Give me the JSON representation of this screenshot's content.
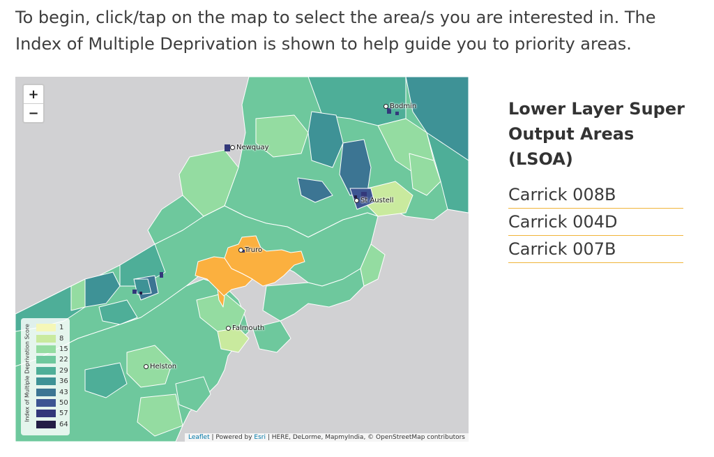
{
  "intro": {
    "line1": "To begin, click/tap on the map to select the area/s you are interested in. The",
    "line2": "Index of Multiple Deprivation is shown to help guide you to priority areas."
  },
  "map": {
    "zoom_in": "+",
    "zoom_out": "−",
    "towns": [
      "Bodmin",
      "Newquay",
      "St Austell",
      "Truro",
      "Falmouth",
      "Helston"
    ],
    "legend": {
      "title": "Index of Multiple Deprivation Score",
      "items": [
        {
          "label": "1",
          "color": "#f5f7b8"
        },
        {
          "label": "8",
          "color": "#c9ea9e"
        },
        {
          "label": "15",
          "color": "#94dca1"
        },
        {
          "label": "22",
          "color": "#6ec89d"
        },
        {
          "label": "29",
          "color": "#4eae98"
        },
        {
          "label": "36",
          "color": "#3e9296"
        },
        {
          "label": "43",
          "color": "#3c7593"
        },
        {
          "label": "50",
          "color": "#3d5592"
        },
        {
          "label": "57",
          "color": "#33387a"
        },
        {
          "label": "64",
          "color": "#241d45"
        }
      ]
    },
    "selected_color": "#fbb03f",
    "attribution": {
      "leaflet": "Leaflet",
      "powered": " | Powered by ",
      "esri": "Esri",
      "rest": " | HERE, DeLorme, MapmyIndia, © OpenStreetMap contributors"
    }
  },
  "panel": {
    "title_line1": "Lower Layer Super",
    "title_line2": "Output Areas (LSOA)",
    "items": [
      "Carrick 008B",
      "Carrick 004D",
      "Carrick 007B"
    ]
  }
}
